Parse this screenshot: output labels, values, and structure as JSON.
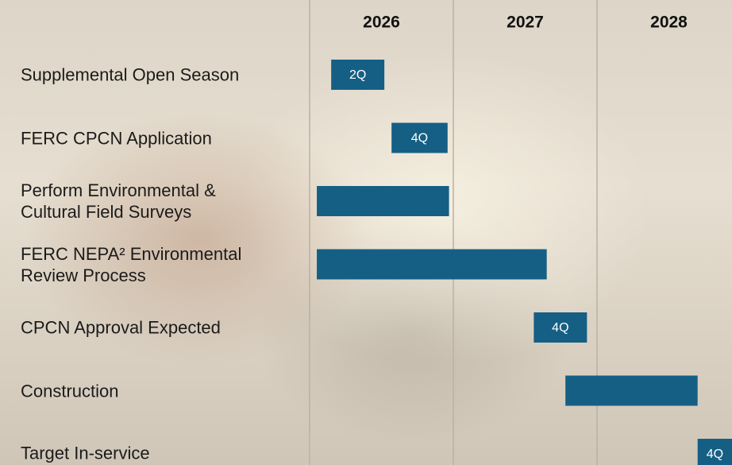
{
  "chart_data": {
    "type": "gantt",
    "categories": [
      "Supplemental Open Season",
      "FERC CPCN Application",
      "Perform Environmental &\nCultural Field Surveys",
      "FERC NEPA² Environmental\nReview Process",
      "CPCN Approval Expected",
      "Construction",
      "Target In-service"
    ],
    "start": [
      2026.15,
      2026.57,
      2026.05,
      2026.05,
      2027.56,
      2027.78,
      2028.7
    ],
    "end": [
      2026.52,
      2026.96,
      2026.97,
      2027.65,
      2027.93,
      2028.7,
      2028.94
    ],
    "bar_labels": [
      "2Q",
      "4Q",
      null,
      null,
      "4Q",
      null,
      "4Q"
    ],
    "color": "#155f84",
    "xlim": [
      2026,
      2029
    ],
    "xticks": [
      2026,
      2027,
      2028
    ],
    "grid": true
  }
}
